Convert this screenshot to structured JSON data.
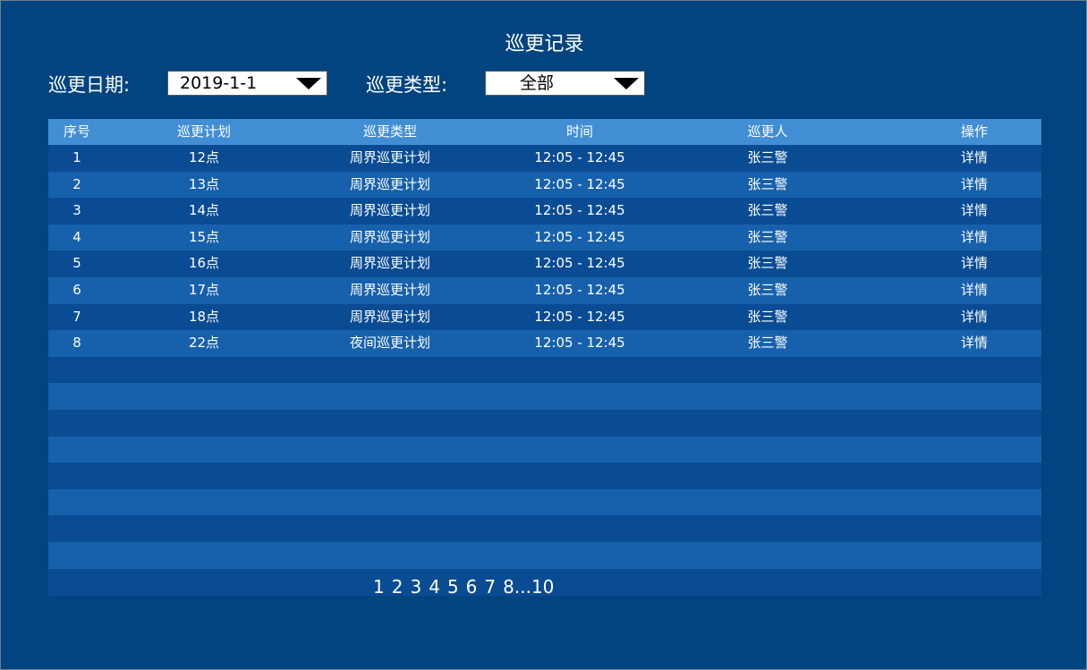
{
  "title": "巡更记录",
  "filters": {
    "date_label": "巡更日期:",
    "date_value": "2019-1-1",
    "type_label": "巡更类型:",
    "type_value": "全部"
  },
  "table": {
    "headers": [
      "序号",
      "巡更计划",
      "巡更类型",
      "时间",
      "巡更人",
      "操作"
    ],
    "rows": [
      [
        "1",
        "12点",
        "周界巡更计划",
        "12:05 - 12:45",
        "张三警",
        "详情"
      ],
      [
        "2",
        "13点",
        "周界巡更计划",
        "12:05 - 12:45",
        "张三警",
        "详情"
      ],
      [
        "3",
        "14点",
        "周界巡更计划",
        "12:05 - 12:45",
        "张三警",
        "详情"
      ],
      [
        "4",
        "15点",
        "周界巡更计划",
        "12:05 - 12:45",
        "张三警",
        "详情"
      ],
      [
        "5",
        "16点",
        "周界巡更计划",
        "12:05 - 12:45",
        "张三警",
        "详情"
      ],
      [
        "6",
        "17点",
        "周界巡更计划",
        "12:05 - 12:45",
        "张三警",
        "详情"
      ],
      [
        "7",
        "18点",
        "周界巡更计划",
        "12:05 - 12:45",
        "张三警",
        "详情"
      ],
      [
        "8",
        "22点",
        "夜间巡更计划",
        "12:05 - 12:45",
        "张三警",
        "详情"
      ]
    ]
  },
  "pagination": [
    "1",
    "2",
    "3",
    "4",
    "5",
    "6",
    "7",
    "8...10"
  ],
  "colors": {
    "background": "#02447f",
    "header": "#428ed5",
    "row_dark": "#094c94",
    "row_light": "#1761ac"
  }
}
